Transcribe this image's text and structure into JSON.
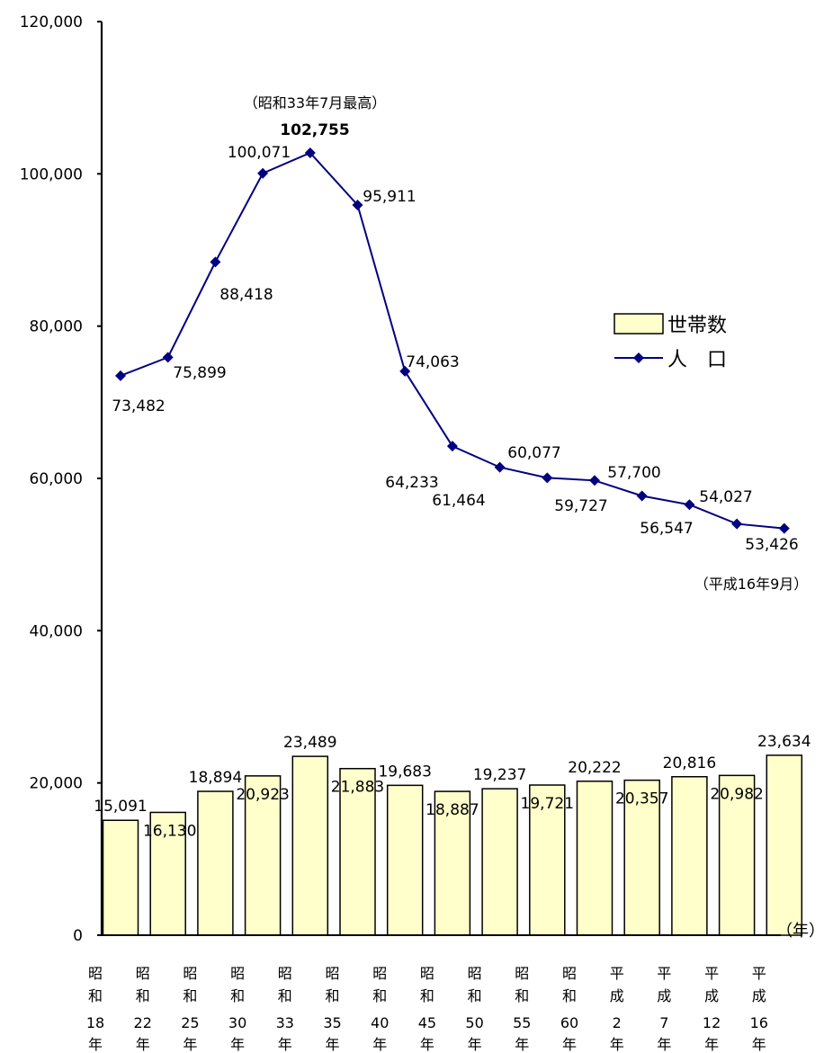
{
  "chart_data": {
    "type": "bar+line",
    "ylim": [
      0,
      120000
    ],
    "y_ticks": [
      "0",
      "20,000",
      "40,000",
      "60,000",
      "80,000",
      "100,000",
      "120,000"
    ],
    "y_tick_values": [
      0,
      20000,
      40000,
      60000,
      80000,
      100000,
      120000
    ],
    "x_unit_label": "（年）",
    "categories": [
      {
        "era": [
          "昭",
          "和"
        ],
        "num": "18",
        "suffix": "年"
      },
      {
        "era": [
          "昭",
          "和"
        ],
        "num": "22",
        "suffix": "年"
      },
      {
        "era": [
          "昭",
          "和"
        ],
        "num": "25",
        "suffix": "年"
      },
      {
        "era": [
          "昭",
          "和"
        ],
        "num": "30",
        "suffix": "年"
      },
      {
        "era": [
          "昭",
          "和"
        ],
        "num": "33",
        "suffix": "年"
      },
      {
        "era": [
          "昭",
          "和"
        ],
        "num": "35",
        "suffix": "年"
      },
      {
        "era": [
          "昭",
          "和"
        ],
        "num": "40",
        "suffix": "年"
      },
      {
        "era": [
          "昭",
          "和"
        ],
        "num": "45",
        "suffix": "年"
      },
      {
        "era": [
          "昭",
          "和"
        ],
        "num": "50",
        "suffix": "年"
      },
      {
        "era": [
          "昭",
          "和"
        ],
        "num": "55",
        "suffix": "年"
      },
      {
        "era": [
          "昭",
          "和"
        ],
        "num": "60",
        "suffix": "年"
      },
      {
        "era": [
          "平",
          "成"
        ],
        "num": "2",
        "suffix": "年"
      },
      {
        "era": [
          "平",
          "成"
        ],
        "num": "7",
        "suffix": "年"
      },
      {
        "era": [
          "平",
          "成"
        ],
        "num": "12",
        "suffix": "年"
      },
      {
        "era": [
          "平",
          "成"
        ],
        "num": "16",
        "suffix": "年"
      }
    ],
    "series": [
      {
        "name": "世帯数",
        "kind": "bar",
        "color": "#FFFFCC",
        "values": [
          15091,
          16130,
          18894,
          20923,
          23489,
          21883,
          19683,
          18887,
          19237,
          19721,
          20222,
          20357,
          20816,
          20982,
          23634
        ],
        "labels": [
          "15,091",
          "16,130",
          "18,894",
          "20,923",
          "23,489",
          "21,883",
          "19,683",
          "18,887",
          "19,237",
          "19,721",
          "20,222",
          "20,357",
          "20,816",
          "20,982",
          "23,634"
        ]
      },
      {
        "name": "人　口",
        "kind": "line",
        "color": "#000080",
        "values": [
          73482,
          75899,
          88418,
          100071,
          102755,
          95911,
          74063,
          64233,
          61464,
          60077,
          59727,
          57700,
          56547,
          54027,
          53426
        ],
        "labels": [
          "73,482",
          "75,899",
          "88,418",
          "100,071",
          "102,755",
          "95,911",
          "74,063",
          "64,233",
          "61,464",
          "60,077",
          "59,727",
          "57,700",
          "56,547",
          "54,027",
          "53,426"
        ]
      }
    ],
    "annotations": {
      "peak_note": "（昭和33年7月最高）",
      "latest_note": "（平成16年9月）"
    },
    "legend_position": "right",
    "grid": false
  }
}
